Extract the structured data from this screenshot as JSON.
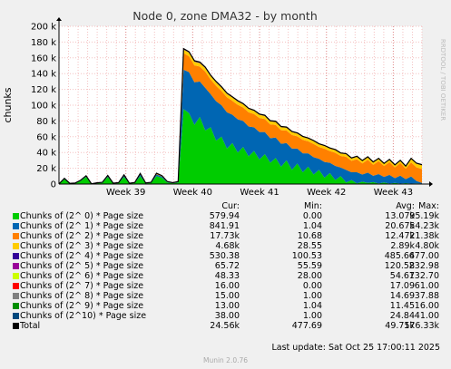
{
  "chart_data": {
    "type": "area",
    "title": "Node 0, zone DMA32 - by month",
    "ylabel": "chunks",
    "xlabel": "",
    "watermark": "RRDTOOL / TOBI OETIKER",
    "y_ticks": [
      "0",
      "20 k",
      "40 k",
      "60 k",
      "80 k",
      "100 k",
      "120 k",
      "140 k",
      "160 k",
      "180 k",
      "200 k"
    ],
    "ylim": [
      0,
      200000
    ],
    "x_ticks": [
      "Week 39",
      "Week 40",
      "Week 41",
      "Week 42",
      "Week 43"
    ],
    "x_tick_positions_days": [
      7,
      14,
      21,
      28,
      35
    ],
    "xlim_days": [
      0,
      38
    ],
    "grid": true,
    "stacked": true,
    "series": [
      {
        "name": "Chunks of (2^ 0) * Page size",
        "color": "#00cc00",
        "cur": "579.94",
        "min": "0.00",
        "avg": "13.07k",
        "max": "95.19k",
        "values": [
          0,
          6000,
          500,
          800,
          4000,
          9000,
          0,
          1000,
          1500,
          9000,
          800,
          1200,
          9000,
          700,
          1400,
          10000,
          900,
          1500,
          10000,
          8000,
          2000,
          1000,
          2000,
          95000,
          90000,
          75000,
          85000,
          68000,
          72000,
          55000,
          60000,
          45000,
          52000,
          40000,
          47000,
          35000,
          42000,
          31000,
          38000,
          27000,
          33000,
          22000,
          30000,
          18000,
          26000,
          15000,
          22000,
          12000,
          18000,
          8000,
          14000,
          5000,
          10000,
          2000,
          5000,
          900,
          3000,
          1500,
          2500,
          700,
          2000,
          600,
          1500,
          580,
          1200,
          600,
          900,
          579.94
        ]
      },
      {
        "name": "Chunks of (2^ 1) * Page size",
        "color": "#0066b3",
        "cur": "841.91",
        "min": "1.04",
        "avg": "20.67k",
        "max": "54.23k",
        "values": [
          0,
          600,
          100,
          200,
          400,
          800,
          10,
          200,
          300,
          1000,
          100,
          200,
          1500,
          100,
          300,
          2000,
          200,
          300,
          2200,
          1500,
          600,
          300,
          600,
          50000,
          52000,
          54000,
          45000,
          54000,
          42000,
          50000,
          40000,
          46000,
          36000,
          42000,
          33000,
          38000,
          30000,
          35000,
          28000,
          31000,
          26000,
          29000,
          22000,
          27000,
          19000,
          24000,
          17000,
          22000,
          14000,
          20000,
          13000,
          18000,
          11000,
          16000,
          10000,
          14000,
          9000,
          13000,
          8000,
          12000,
          7000,
          11000,
          6000,
          10000,
          5000,
          9000,
          3000,
          841.91
        ]
      },
      {
        "name": "Chunks of (2^ 2) * Page size",
        "color": "#ff8000",
        "cur": "17.73k",
        "min": "10.68",
        "avg": "12.47k",
        "max": "21.38k",
        "values": [
          0,
          300,
          50,
          100,
          200,
          400,
          20,
          100,
          150,
          500,
          60,
          100,
          700,
          60,
          150,
          900,
          100,
          150,
          1000,
          700,
          300,
          150,
          300,
          21000,
          20000,
          21380,
          19000,
          20500,
          18500,
          19500,
          18000,
          19000,
          17500,
          18500,
          17000,
          18000,
          16800,
          17800,
          16500,
          17500,
          16000,
          17300,
          15800,
          17200,
          15500,
          17000,
          15200,
          16900,
          15000,
          16800,
          14800,
          16700,
          14600,
          16600,
          14400,
          16500,
          14200,
          16400,
          14000,
          16300,
          13800,
          16200,
          13600,
          16100,
          13400,
          17800,
          17200,
          17730
        ]
      },
      {
        "name": "Chunks of (2^ 3) * Page size",
        "color": "#ffcc00",
        "cur": "4.68k",
        "min": "28.55",
        "avg": "2.89k",
        "max": "4.80k",
        "values": [
          0,
          60,
          30,
          30,
          60,
          90,
          30,
          40,
          40,
          100,
          30,
          40,
          150,
          30,
          40,
          200,
          40,
          40,
          220,
          150,
          60,
          40,
          60,
          4500,
          4600,
          4800,
          4500,
          4600,
          4400,
          4500,
          4300,
          4400,
          4200,
          4300,
          4100,
          4200,
          4000,
          4100,
          3900,
          4000,
          3800,
          3900,
          3700,
          3800,
          3600,
          3700,
          3500,
          3600,
          3400,
          3500,
          3300,
          3400,
          3200,
          3300,
          3100,
          3200,
          3000,
          3100,
          2900,
          3000,
          2800,
          2900,
          2700,
          2800,
          2600,
          4500,
          4600,
          4680
        ]
      },
      {
        "name": "Chunks of (2^ 4) * Page size",
        "color": "#330099",
        "cur": "530.38",
        "min": "100.53",
        "avg": "485.64",
        "max": "677.00",
        "values": [
          110,
          130,
          110,
          110,
          130,
          150,
          110,
          120,
          120,
          160,
          110,
          120,
          180,
          110,
          120,
          200,
          120,
          120,
          210,
          180,
          130,
          120,
          130,
          670,
          677,
          660,
          650,
          640,
          630,
          620,
          610,
          600,
          590,
          580,
          570,
          560,
          550,
          540,
          530,
          520,
          510,
          500,
          500,
          490,
          490,
          480,
          480,
          470,
          470,
          460,
          460,
          450,
          450,
          440,
          440,
          430,
          430,
          420,
          420,
          410,
          410,
          400,
          400,
          390,
          390,
          520,
          525,
          530.38
        ]
      },
      {
        "name": "Chunks of (2^ 5) * Page size",
        "color": "#990099",
        "cur": "65.72",
        "min": "55.59",
        "avg": "120.58",
        "max": "232.98",
        "values": [
          60,
          60,
          60,
          60,
          60,
          60,
          60,
          60,
          60,
          60,
          60,
          60,
          60,
          60,
          60,
          60,
          60,
          60,
          60,
          60,
          60,
          60,
          60,
          230,
          232,
          225,
          220,
          210,
          200,
          195,
          190,
          185,
          180,
          175,
          170,
          165,
          160,
          155,
          150,
          145,
          140,
          135,
          130,
          125,
          120,
          115,
          110,
          105,
          100,
          95,
          90,
          85,
          80,
          78,
          76,
          74,
          72,
          70,
          68,
          66,
          65,
          65,
          65,
          65,
          65,
          66,
          66,
          65.72
        ]
      },
      {
        "name": "Chunks of (2^ 6) * Page size",
        "color": "#ccff00",
        "cur": "48.33",
        "min": "28.00",
        "avg": "54.67",
        "max": "132.70",
        "values": [
          30,
          30,
          30,
          30,
          30,
          30,
          30,
          30,
          30,
          30,
          30,
          30,
          30,
          30,
          30,
          30,
          30,
          30,
          30,
          30,
          30,
          30,
          30,
          130,
          132,
          128,
          124,
          120,
          115,
          110,
          105,
          100,
          95,
          90,
          85,
          80,
          75,
          70,
          66,
          62,
          58,
          55,
          52,
          50,
          48,
          47,
          46,
          46,
          46,
          46,
          46,
          47,
          47,
          47,
          47,
          47,
          47,
          48,
          48,
          48,
          48,
          48,
          48,
          48,
          48,
          48,
          48,
          48.33
        ]
      },
      {
        "name": "Chunks of (2^ 7) * Page size",
        "color": "#ff0000",
        "cur": "16.00",
        "min": "0.00",
        "avg": "17.09",
        "max": "61.00",
        "values": [
          0,
          2,
          0,
          1,
          2,
          4,
          0,
          1,
          1,
          5,
          0,
          1,
          6,
          0,
          1,
          8,
          1,
          1,
          8,
          6,
          2,
          1,
          2,
          60,
          61,
          58,
          55,
          50,
          45,
          40,
          36,
          33,
          30,
          27,
          25,
          23,
          21,
          20,
          19,
          18,
          17,
          17,
          16,
          16,
          16,
          16,
          16,
          16,
          16,
          16,
          16,
          16,
          16,
          16,
          16,
          16,
          16,
          16,
          16,
          16,
          16,
          16,
          16,
          16,
          16,
          16,
          16,
          16
        ]
      },
      {
        "name": "Chunks of (2^ 8) * Page size",
        "color": "#808080",
        "cur": "15.00",
        "min": "1.00",
        "avg": "14.69",
        "max": "37.88",
        "values": [
          1,
          2,
          1,
          1,
          2,
          3,
          1,
          1,
          1,
          3,
          1,
          1,
          4,
          1,
          1,
          5,
          1,
          1,
          5,
          4,
          2,
          1,
          2,
          36,
          37.88,
          36,
          34,
          32,
          30,
          28,
          26,
          24,
          22,
          20,
          19,
          18,
          17,
          16,
          16,
          15,
          15,
          15,
          15,
          15,
          15,
          15,
          15,
          15,
          15,
          15,
          15,
          15,
          15,
          15,
          15,
          15,
          15,
          15,
          15,
          15,
          15,
          15,
          15,
          15,
          15,
          15,
          15,
          15
        ]
      },
      {
        "name": "Chunks of (2^ 9) * Page size",
        "color": "#008f00",
        "cur": "13.00",
        "min": "1.04",
        "avg": "11.45",
        "max": "16.00",
        "values": [
          1,
          2,
          1,
          1,
          2,
          3,
          1,
          1,
          1,
          3,
          1,
          1,
          3,
          1,
          1,
          4,
          1,
          1,
          4,
          3,
          2,
          1,
          2,
          15,
          16,
          16,
          16,
          15,
          15,
          15,
          14,
          14,
          14,
          14,
          13,
          13,
          13,
          13,
          13,
          13,
          13,
          13,
          13,
          13,
          13,
          13,
          13,
          13,
          13,
          13,
          13,
          13,
          13,
          13,
          13,
          13,
          13,
          13,
          13,
          13,
          13,
          13,
          13,
          13,
          13,
          13,
          13,
          13
        ]
      },
      {
        "name": "Chunks of (2^10) * Page size",
        "color": "#00487d",
        "cur": "38.00",
        "min": "1.00",
        "avg": "24.84",
        "max": "41.00",
        "values": [
          1,
          2,
          1,
          1,
          2,
          3,
          1,
          1,
          1,
          3,
          1,
          1,
          4,
          1,
          1,
          5,
          1,
          1,
          5,
          4,
          2,
          1,
          2,
          40,
          41,
          41,
          40,
          40,
          40,
          39,
          39,
          39,
          39,
          39,
          38,
          38,
          38,
          38,
          38,
          38,
          38,
          38,
          38,
          38,
          38,
          38,
          38,
          38,
          38,
          38,
          38,
          38,
          38,
          38,
          38,
          38,
          38,
          38,
          38,
          38,
          38,
          38,
          38,
          38,
          38,
          38,
          38,
          38
        ]
      }
    ],
    "total": {
      "name": "Total",
      "color": "#000000",
      "cur": "24.56k",
      "min": "477.69",
      "avg": "49.75k",
      "max": "176.33k"
    }
  },
  "legend_headers": {
    "cur": "Cur:",
    "min": "Min:",
    "avg": "Avg:",
    "max": "Max:"
  },
  "last_update": "Last update: Sat Oct 25 17:00:11 2025",
  "footer": "Munin 2.0.76"
}
